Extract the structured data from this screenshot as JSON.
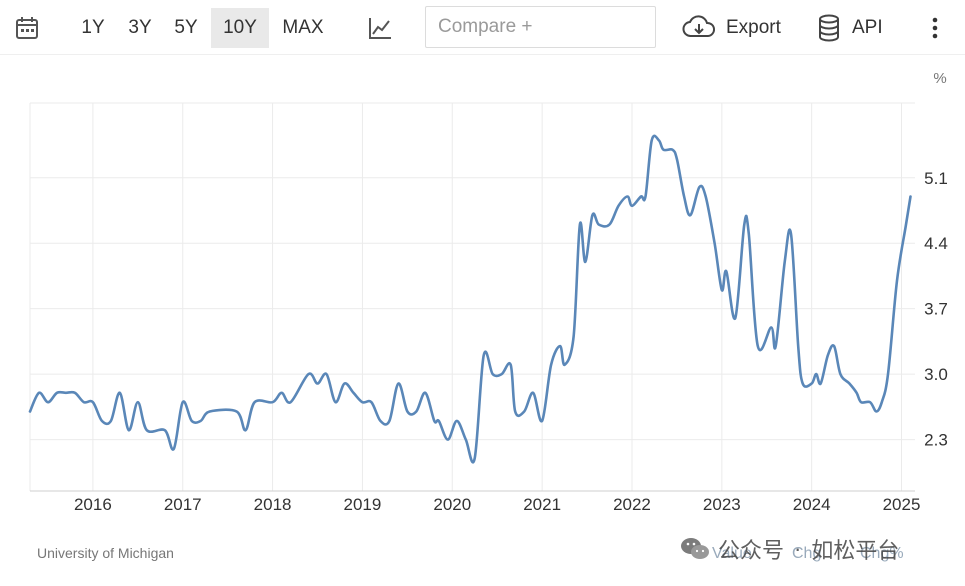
{
  "toolbar": {
    "ranges": [
      "1Y",
      "3Y",
      "5Y",
      "10Y",
      "MAX"
    ],
    "active_range": "10Y",
    "compare_placeholder": "Compare +",
    "export_label": "Export",
    "api_label": "API",
    "icons": {
      "calendar": "calendar-icon",
      "chart_type": "line-chart-icon",
      "export": "cloud-download-icon",
      "api": "database-icon",
      "more": "kebab-menu-icon"
    }
  },
  "footer": {
    "source": "University of Michigan",
    "ghost_labels": [
      "Value",
      "Chg",
      "Chg%"
    ]
  },
  "watermark": {
    "parts": [
      "公众号",
      "·",
      "如松平台"
    ]
  },
  "colors": {
    "line": "#5a87b8",
    "grid": "#ebebeb",
    "active_bg": "#e9e9e9",
    "axis_text": "#333333"
  },
  "chart_data": {
    "type": "line",
    "title": "",
    "unit_label": "%",
    "y_ticks": [
      2.3,
      3.0,
      3.7,
      4.4,
      5.1
    ],
    "x_ticks": [
      "2016",
      "2017",
      "2018",
      "2019",
      "2020",
      "2021",
      "2022",
      "2023",
      "2024",
      "2025"
    ],
    "xlim": [
      2015.3,
      2025.15
    ],
    "ylim": [
      1.75,
      5.9
    ],
    "grid": true,
    "legend": "none",
    "series": [
      {
        "values": [
          [
            2015.3,
            2.6
          ],
          [
            2015.4,
            2.8
          ],
          [
            2015.5,
            2.7
          ],
          [
            2015.6,
            2.8
          ],
          [
            2015.7,
            2.8
          ],
          [
            2015.8,
            2.8
          ],
          [
            2015.9,
            2.7
          ],
          [
            2016.0,
            2.7
          ],
          [
            2016.1,
            2.5
          ],
          [
            2016.2,
            2.5
          ],
          [
            2016.3,
            2.8
          ],
          [
            2016.4,
            2.4
          ],
          [
            2016.5,
            2.7
          ],
          [
            2016.6,
            2.4
          ],
          [
            2016.8,
            2.4
          ],
          [
            2016.9,
            2.2
          ],
          [
            2017.0,
            2.7
          ],
          [
            2017.1,
            2.5
          ],
          [
            2017.2,
            2.5
          ],
          [
            2017.3,
            2.6
          ],
          [
            2017.6,
            2.6
          ],
          [
            2017.7,
            2.4
          ],
          [
            2017.8,
            2.7
          ],
          [
            2018.0,
            2.7
          ],
          [
            2018.1,
            2.8
          ],
          [
            2018.2,
            2.7
          ],
          [
            2018.4,
            3.0
          ],
          [
            2018.5,
            2.9
          ],
          [
            2018.6,
            3.0
          ],
          [
            2018.7,
            2.7
          ],
          [
            2018.8,
            2.9
          ],
          [
            2018.9,
            2.8
          ],
          [
            2019.0,
            2.7
          ],
          [
            2019.1,
            2.7
          ],
          [
            2019.2,
            2.5
          ],
          [
            2019.3,
            2.5
          ],
          [
            2019.4,
            2.9
          ],
          [
            2019.5,
            2.6
          ],
          [
            2019.6,
            2.6
          ],
          [
            2019.7,
            2.8
          ],
          [
            2019.8,
            2.5
          ],
          [
            2019.85,
            2.5
          ],
          [
            2019.95,
            2.3
          ],
          [
            2020.05,
            2.5
          ],
          [
            2020.15,
            2.3
          ],
          [
            2020.25,
            2.1
          ],
          [
            2020.35,
            3.2
          ],
          [
            2020.45,
            3.0
          ],
          [
            2020.55,
            3.0
          ],
          [
            2020.65,
            3.1
          ],
          [
            2020.7,
            2.6
          ],
          [
            2020.8,
            2.6
          ],
          [
            2020.9,
            2.8
          ],
          [
            2021.0,
            2.5
          ],
          [
            2021.1,
            3.1
          ],
          [
            2021.2,
            3.3
          ],
          [
            2021.25,
            3.1
          ],
          [
            2021.35,
            3.4
          ],
          [
            2021.42,
            4.6
          ],
          [
            2021.48,
            4.2
          ],
          [
            2021.56,
            4.7
          ],
          [
            2021.63,
            4.6
          ],
          [
            2021.75,
            4.6
          ],
          [
            2021.85,
            4.8
          ],
          [
            2021.95,
            4.9
          ],
          [
            2022.0,
            4.8
          ],
          [
            2022.1,
            4.9
          ],
          [
            2022.15,
            4.9
          ],
          [
            2022.22,
            5.5
          ],
          [
            2022.3,
            5.5
          ],
          [
            2022.35,
            5.4
          ],
          [
            2022.45,
            5.4
          ],
          [
            2022.5,
            5.3
          ],
          [
            2022.58,
            4.9
          ],
          [
            2022.65,
            4.7
          ],
          [
            2022.75,
            5.0
          ],
          [
            2022.82,
            4.9
          ],
          [
            2022.92,
            4.4
          ],
          [
            2023.0,
            3.9
          ],
          [
            2023.05,
            4.1
          ],
          [
            2023.15,
            3.6
          ],
          [
            2023.25,
            4.6
          ],
          [
            2023.3,
            4.5
          ],
          [
            2023.4,
            3.3
          ],
          [
            2023.55,
            3.5
          ],
          [
            2023.6,
            3.3
          ],
          [
            2023.7,
            4.2
          ],
          [
            2023.77,
            4.5
          ],
          [
            2023.85,
            3.3
          ],
          [
            2023.9,
            2.9
          ],
          [
            2024.0,
            2.9
          ],
          [
            2024.05,
            3.0
          ],
          [
            2024.1,
            2.9
          ],
          [
            2024.18,
            3.2
          ],
          [
            2024.25,
            3.3
          ],
          [
            2024.32,
            3.0
          ],
          [
            2024.42,
            2.9
          ],
          [
            2024.5,
            2.8
          ],
          [
            2024.55,
            2.7
          ],
          [
            2024.65,
            2.7
          ],
          [
            2024.72,
            2.6
          ],
          [
            2024.78,
            2.7
          ],
          [
            2024.85,
            3.0
          ],
          [
            2024.95,
            4.0
          ],
          [
            2025.05,
            4.6
          ],
          [
            2025.1,
            4.9
          ]
        ]
      }
    ]
  }
}
